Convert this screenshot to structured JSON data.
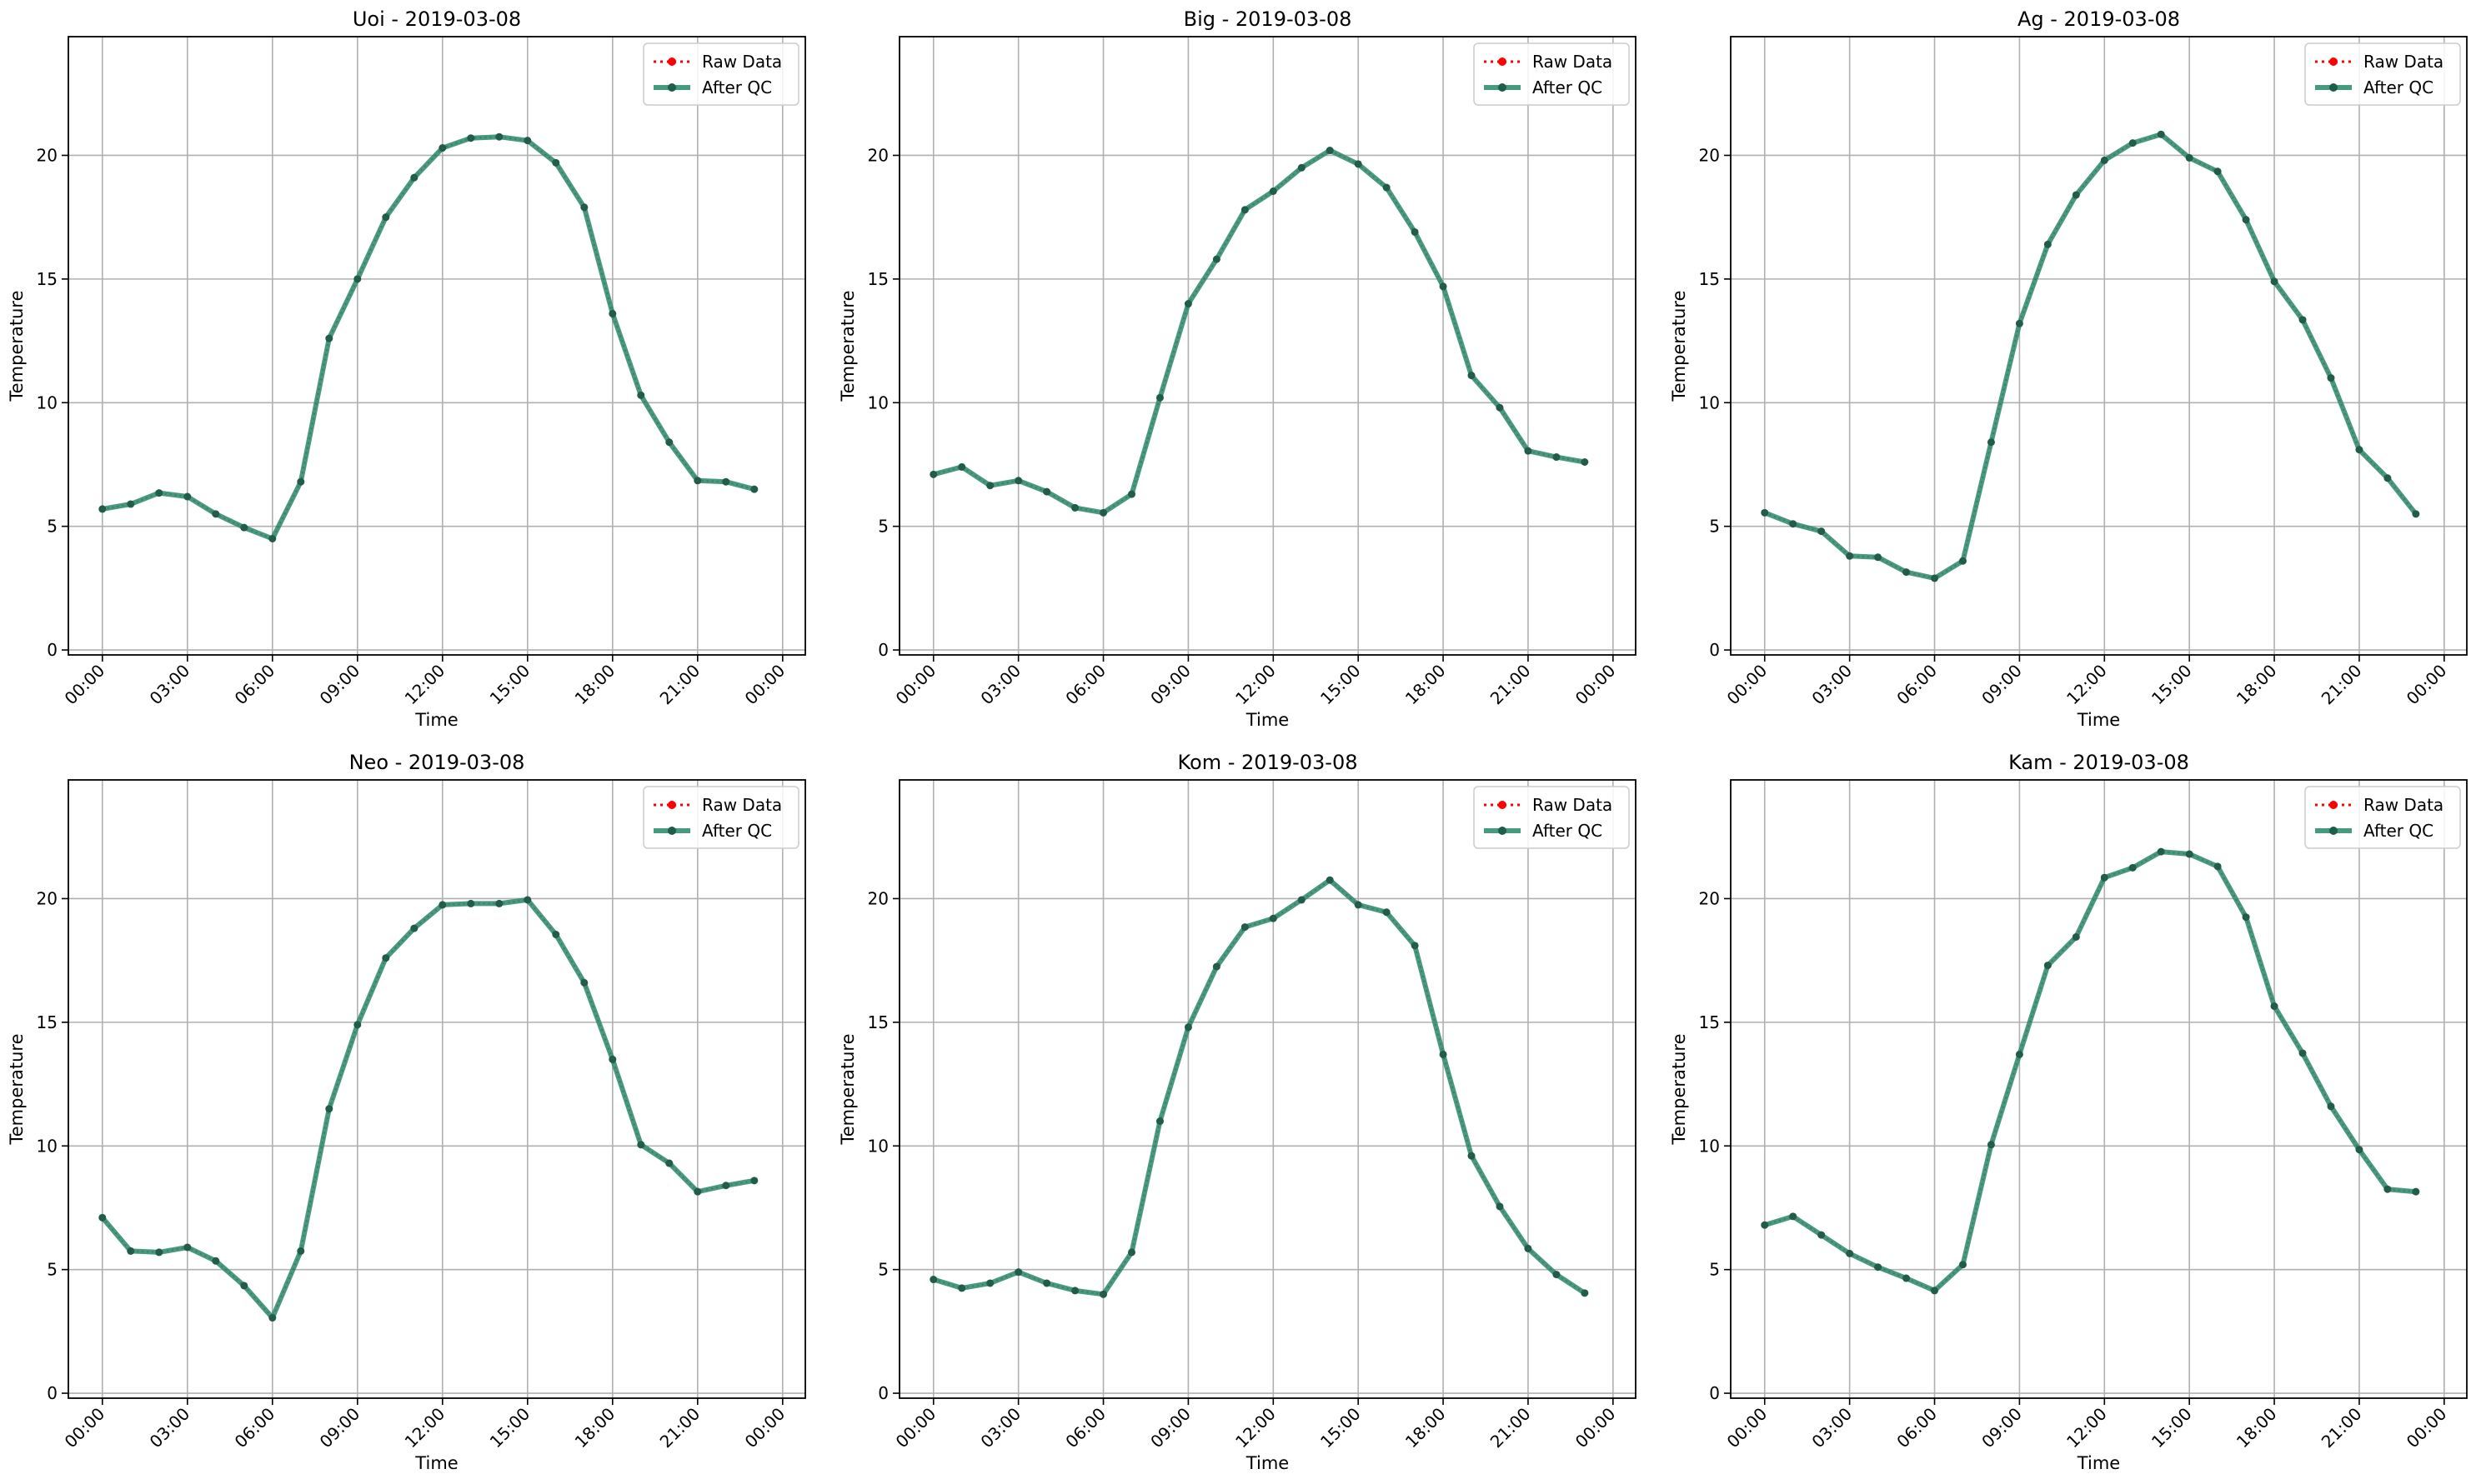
{
  "figure": {
    "legend_labels": {
      "raw": "Raw Data",
      "qc": "After QC"
    },
    "colors": {
      "raw": "#ff0000",
      "qc": "#2e8b6e",
      "marker": "#1f5c4a",
      "grid": "#b0b0b0",
      "axes": "#000000"
    }
  },
  "chart_data": [
    {
      "type": "line",
      "title": "Uoi - 2019-03-08",
      "xlabel": "Time",
      "ylabel": "Temperature",
      "xlim_hours": [
        -1.2,
        24.8
      ],
      "ylim": [
        -0.2,
        24.8
      ],
      "x_ticks": [
        "00:00",
        "03:00",
        "06:00",
        "09:00",
        "12:00",
        "15:00",
        "18:00",
        "21:00",
        "00:00"
      ],
      "y_ticks": [
        0,
        5,
        10,
        15,
        20
      ],
      "grid": true,
      "legend_position": "top-right",
      "x_hours": [
        0,
        1,
        2,
        3,
        4,
        5,
        6,
        7,
        8,
        9,
        10,
        11,
        12,
        13,
        14,
        15,
        16,
        17,
        18,
        19,
        20,
        21,
        22,
        23
      ],
      "series": [
        {
          "name": "Raw Data",
          "values": [
            5.7,
            5.9,
            6.35,
            6.2,
            5.5,
            4.95,
            4.5,
            6.8,
            12.6,
            15.0,
            17.5,
            19.1,
            20.3,
            20.7,
            20.75,
            20.6,
            19.7,
            17.9,
            13.6,
            10.3,
            8.4,
            6.85,
            6.8,
            6.5
          ]
        },
        {
          "name": "After QC",
          "values": [
            5.7,
            5.9,
            6.35,
            6.2,
            5.5,
            4.95,
            4.5,
            6.8,
            12.6,
            15.0,
            17.5,
            19.1,
            20.3,
            20.7,
            20.75,
            20.6,
            19.7,
            17.9,
            13.6,
            10.3,
            8.4,
            6.85,
            6.8,
            6.5
          ]
        }
      ]
    },
    {
      "type": "line",
      "title": "Big - 2019-03-08",
      "xlabel": "Time",
      "ylabel": "Temperature",
      "xlim_hours": [
        -1.2,
        24.8
      ],
      "ylim": [
        -0.2,
        24.8
      ],
      "x_ticks": [
        "00:00",
        "03:00",
        "06:00",
        "09:00",
        "12:00",
        "15:00",
        "18:00",
        "21:00",
        "00:00"
      ],
      "y_ticks": [
        0,
        5,
        10,
        15,
        20
      ],
      "grid": true,
      "legend_position": "top-right",
      "x_hours": [
        0,
        1,
        2,
        3,
        4,
        5,
        6,
        7,
        8,
        9,
        10,
        11,
        12,
        13,
        14,
        15,
        16,
        17,
        18,
        19,
        20,
        21,
        22,
        23
      ],
      "series": [
        {
          "name": "Raw Data",
          "values": [
            7.1,
            7.4,
            6.65,
            6.85,
            6.4,
            5.75,
            5.55,
            6.3,
            10.2,
            14.0,
            15.8,
            17.8,
            18.55,
            19.5,
            20.2,
            19.65,
            18.7,
            16.9,
            14.7,
            11.1,
            9.8,
            8.05,
            7.8,
            7.6
          ]
        },
        {
          "name": "After QC",
          "values": [
            7.1,
            7.4,
            6.65,
            6.85,
            6.4,
            5.75,
            5.55,
            6.3,
            10.2,
            14.0,
            15.8,
            17.8,
            18.55,
            19.5,
            20.2,
            19.65,
            18.7,
            16.9,
            14.7,
            11.1,
            9.8,
            8.05,
            7.8,
            7.6
          ]
        }
      ]
    },
    {
      "type": "line",
      "title": "Ag - 2019-03-08",
      "xlabel": "Time",
      "ylabel": "Temperature",
      "xlim_hours": [
        -1.2,
        24.8
      ],
      "ylim": [
        -0.2,
        24.8
      ],
      "x_ticks": [
        "00:00",
        "03:00",
        "06:00",
        "09:00",
        "12:00",
        "15:00",
        "18:00",
        "21:00",
        "00:00"
      ],
      "y_ticks": [
        0,
        5,
        10,
        15,
        20
      ],
      "grid": true,
      "legend_position": "top-right",
      "x_hours": [
        0,
        1,
        2,
        3,
        4,
        5,
        6,
        7,
        8,
        9,
        10,
        11,
        12,
        13,
        14,
        15,
        16,
        17,
        18,
        19,
        20,
        21,
        22,
        23
      ],
      "series": [
        {
          "name": "Raw Data",
          "values": [
            5.55,
            5.1,
            4.8,
            3.8,
            3.75,
            3.15,
            2.9,
            3.6,
            8.4,
            13.2,
            16.4,
            18.4,
            19.8,
            20.5,
            20.85,
            19.9,
            19.35,
            17.4,
            14.9,
            13.35,
            11.0,
            8.1,
            6.95,
            5.5
          ]
        },
        {
          "name": "After QC",
          "values": [
            5.55,
            5.1,
            4.8,
            3.8,
            3.75,
            3.15,
            2.9,
            3.6,
            8.4,
            13.2,
            16.4,
            18.4,
            19.8,
            20.5,
            20.85,
            19.9,
            19.35,
            17.4,
            14.9,
            13.35,
            11.0,
            8.1,
            6.95,
            5.5
          ]
        }
      ]
    },
    {
      "type": "line",
      "title": "Neo - 2019-03-08",
      "xlabel": "Time",
      "ylabel": "Temperature",
      "xlim_hours": [
        -1.2,
        24.8
      ],
      "ylim": [
        -0.2,
        24.8
      ],
      "x_ticks": [
        "00:00",
        "03:00",
        "06:00",
        "09:00",
        "12:00",
        "15:00",
        "18:00",
        "21:00",
        "00:00"
      ],
      "y_ticks": [
        0,
        5,
        10,
        15,
        20
      ],
      "grid": true,
      "legend_position": "top-right",
      "x_hours": [
        0,
        1,
        2,
        3,
        4,
        5,
        6,
        7,
        8,
        9,
        10,
        11,
        12,
        13,
        14,
        15,
        16,
        17,
        18,
        19,
        20,
        21,
        22,
        23
      ],
      "series": [
        {
          "name": "Raw Data",
          "values": [
            7.1,
            5.75,
            5.7,
            5.9,
            5.35,
            4.35,
            3.05,
            5.75,
            11.5,
            14.9,
            17.6,
            18.8,
            19.75,
            19.8,
            19.8,
            19.95,
            18.55,
            16.6,
            13.5,
            10.05,
            9.3,
            8.15,
            8.4,
            8.6
          ]
        },
        {
          "name": "After QC",
          "values": [
            7.1,
            5.75,
            5.7,
            5.9,
            5.35,
            4.35,
            3.05,
            5.75,
            11.5,
            14.9,
            17.6,
            18.8,
            19.75,
            19.8,
            19.8,
            19.95,
            18.55,
            16.6,
            13.5,
            10.05,
            9.3,
            8.15,
            8.4,
            8.6
          ]
        }
      ]
    },
    {
      "type": "line",
      "title": "Kom - 2019-03-08",
      "xlabel": "Time",
      "ylabel": "Temperature",
      "xlim_hours": [
        -1.2,
        24.8
      ],
      "ylim": [
        -0.2,
        24.8
      ],
      "x_ticks": [
        "00:00",
        "03:00",
        "06:00",
        "09:00",
        "12:00",
        "15:00",
        "18:00",
        "21:00",
        "00:00"
      ],
      "y_ticks": [
        0,
        5,
        10,
        15,
        20
      ],
      "grid": true,
      "legend_position": "top-right",
      "x_hours": [
        0,
        1,
        2,
        3,
        4,
        5,
        6,
        7,
        8,
        9,
        10,
        11,
        12,
        13,
        14,
        15,
        16,
        17,
        18,
        19,
        20,
        21,
        22,
        23
      ],
      "series": [
        {
          "name": "Raw Data",
          "values": [
            4.6,
            4.25,
            4.45,
            4.9,
            4.45,
            4.15,
            4.0,
            5.7,
            11.0,
            14.8,
            17.25,
            18.85,
            19.2,
            19.95,
            20.75,
            19.75,
            19.45,
            18.1,
            13.7,
            9.6,
            7.55,
            5.85,
            4.8,
            4.05
          ]
        },
        {
          "name": "After QC",
          "values": [
            4.6,
            4.25,
            4.45,
            4.9,
            4.45,
            4.15,
            4.0,
            5.7,
            11.0,
            14.8,
            17.25,
            18.85,
            19.2,
            19.95,
            20.75,
            19.75,
            19.45,
            18.1,
            13.7,
            9.6,
            7.55,
            5.85,
            4.8,
            4.05
          ]
        }
      ]
    },
    {
      "type": "line",
      "title": "Kam - 2019-03-08",
      "xlabel": "Time",
      "ylabel": "Temperature",
      "xlim_hours": [
        -1.2,
        24.8
      ],
      "ylim": [
        -0.2,
        24.8
      ],
      "x_ticks": [
        "00:00",
        "03:00",
        "06:00",
        "09:00",
        "12:00",
        "15:00",
        "18:00",
        "21:00",
        "00:00"
      ],
      "y_ticks": [
        0,
        5,
        10,
        15,
        20
      ],
      "grid": true,
      "legend_position": "top-right",
      "x_hours": [
        0,
        1,
        2,
        3,
        4,
        5,
        6,
        7,
        8,
        9,
        10,
        11,
        12,
        13,
        14,
        15,
        16,
        17,
        18,
        19,
        20,
        21,
        22,
        23
      ],
      "series": [
        {
          "name": "Raw Data",
          "values": [
            6.8,
            7.15,
            6.4,
            5.65,
            5.1,
            4.65,
            4.15,
            5.2,
            10.05,
            13.7,
            17.3,
            18.45,
            20.85,
            21.25,
            21.9,
            21.8,
            21.3,
            19.25,
            15.65,
            13.75,
            11.6,
            9.85,
            8.25,
            8.15
          ]
        },
        {
          "name": "After QC",
          "values": [
            6.8,
            7.15,
            6.4,
            5.65,
            5.1,
            4.65,
            4.15,
            5.2,
            10.05,
            13.7,
            17.3,
            18.45,
            20.85,
            21.25,
            21.9,
            21.8,
            21.3,
            19.25,
            15.65,
            13.75,
            11.6,
            9.85,
            8.25,
            8.15
          ]
        }
      ]
    }
  ]
}
